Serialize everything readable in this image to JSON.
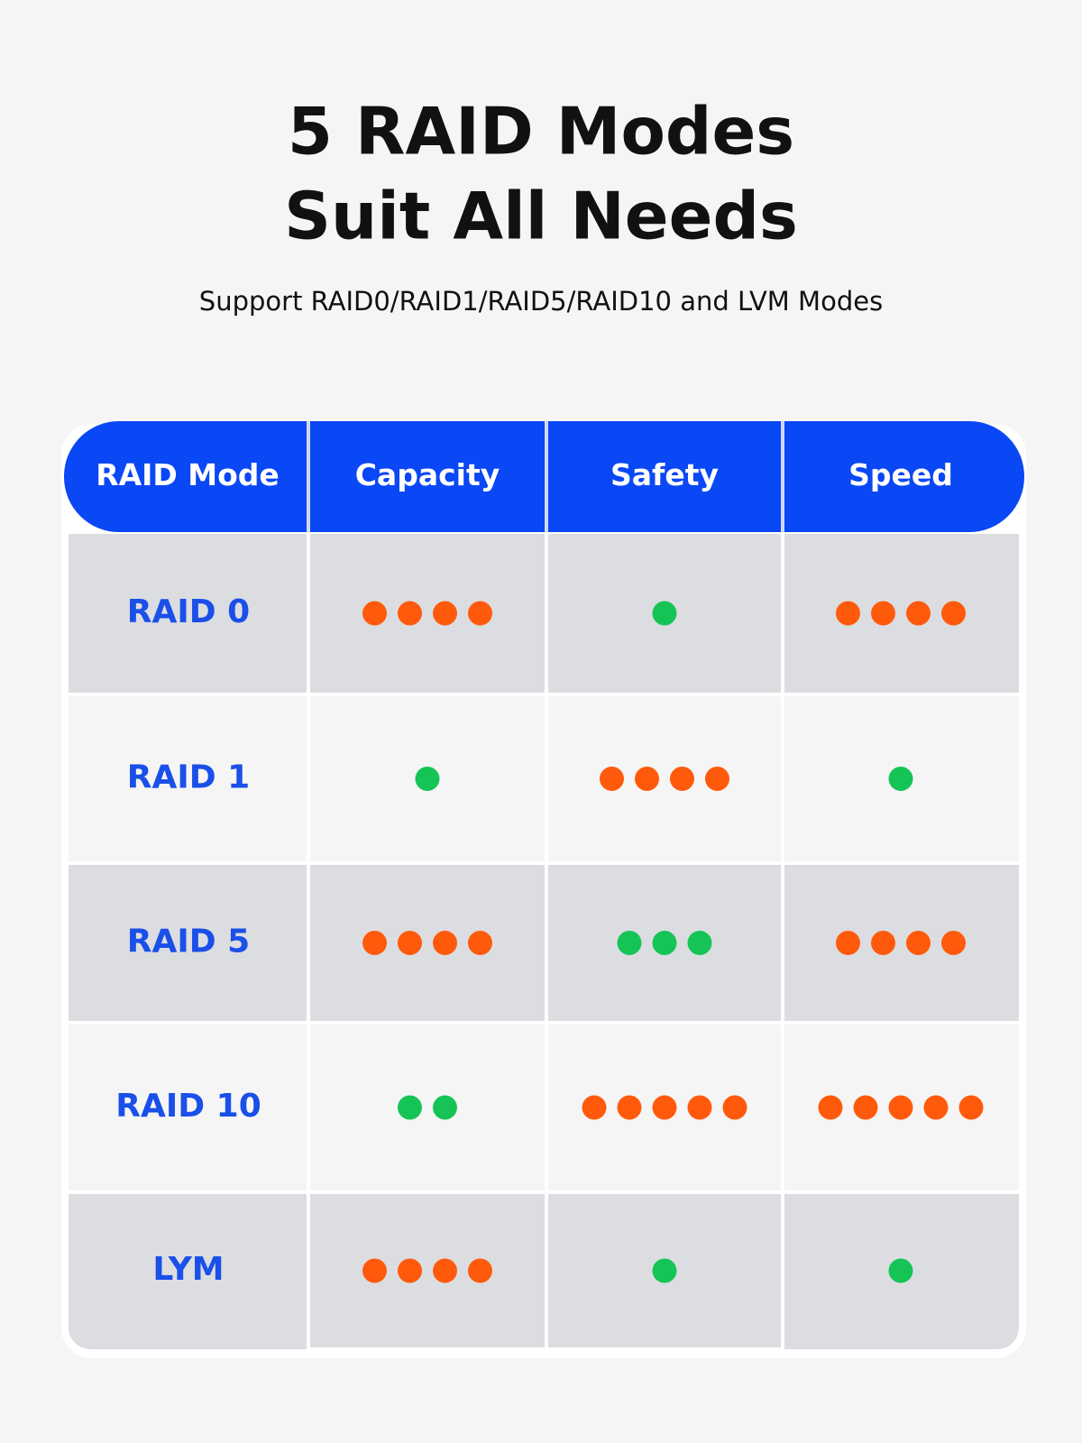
{
  "header": {
    "title": [
      "5 RAID Modes",
      "Suit All Needs"
    ],
    "subtitle": "Support RAID0/RAID1/RAID5/RAID10 and LVM Modes"
  },
  "table": {
    "columns": [
      "RAID Mode",
      "Capacity",
      "Safety",
      "Speed"
    ],
    "rows": [
      {
        "mode": "RAID 0",
        "ratings": [
          {
            "dots": 4,
            "color": "#ff5a0c"
          },
          {
            "dots": 1,
            "color": "#16c456"
          },
          {
            "dots": 4,
            "color": "#ff5a0c"
          }
        ]
      },
      {
        "mode": "RAID 1",
        "ratings": [
          {
            "dots": 1,
            "color": "#16c456"
          },
          {
            "dots": 4,
            "color": "#ff5a0c"
          },
          {
            "dots": 1,
            "color": "#16c456"
          }
        ]
      },
      {
        "mode": "RAID 5",
        "ratings": [
          {
            "dots": 4,
            "color": "#ff5a0c"
          },
          {
            "dots": 3,
            "color": "#16c456"
          },
          {
            "dots": 4,
            "color": "#ff5a0c"
          }
        ]
      },
      {
        "mode": "RAID 10",
        "ratings": [
          {
            "dots": 2,
            "color": "#16c456"
          },
          {
            "dots": 5,
            "color": "#ff5a0c"
          },
          {
            "dots": 5,
            "color": "#ff5a0c"
          }
        ]
      },
      {
        "mode": "LYM",
        "ratings": [
          {
            "dots": 4,
            "color": "#ff5a0c"
          },
          {
            "dots": 1,
            "color": "#16c456"
          },
          {
            "dots": 1,
            "color": "#16c456"
          }
        ]
      }
    ]
  }
}
